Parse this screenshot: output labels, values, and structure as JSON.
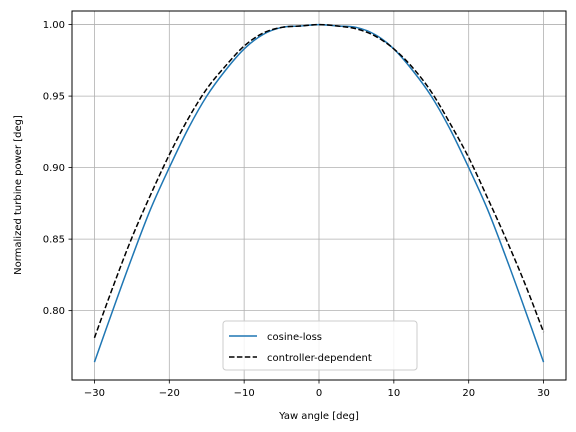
{
  "chart_data": {
    "type": "line",
    "title": "",
    "xlabel": "Yaw angle [deg]",
    "ylabel": "Normalized turbine power [deg]",
    "xlim": [
      -33,
      33
    ],
    "ylim": [
      0.7515,
      1.0095
    ],
    "xticks": [
      -30,
      -20,
      -10,
      0,
      10,
      20,
      30
    ],
    "xtick_labels": [
      "−30",
      "−20",
      "−10",
      "0",
      "10",
      "20",
      "30"
    ],
    "yticks": [
      0.8,
      0.85,
      0.9,
      0.95,
      1.0
    ],
    "ytick_labels": [
      "0.80",
      "0.85",
      "0.90",
      "0.95",
      "1.00"
    ],
    "grid": true,
    "legend_position": "bottom-center",
    "series": [
      {
        "name": "cosine-loss",
        "color": "#1f77b4",
        "dash": "solid",
        "x": [
          -30,
          -27.5,
          -25,
          -22.5,
          -20,
          -17.5,
          -15,
          -12.5,
          -10,
          -7.5,
          -5,
          -2.5,
          0,
          2.5,
          5,
          7.5,
          10,
          12.5,
          15,
          17.5,
          20,
          22.5,
          25,
          27.5,
          30
        ],
        "y": [
          0.764,
          0.801,
          0.837,
          0.871,
          0.9,
          0.927,
          0.95,
          0.968,
          0.983,
          0.993,
          0.998,
          0.999,
          1.0,
          0.999,
          0.998,
          0.993,
          0.983,
          0.968,
          0.95,
          0.927,
          0.9,
          0.871,
          0.837,
          0.801,
          0.764
        ]
      },
      {
        "name": "controller-dependent",
        "color": "#000000",
        "dash": "dashed",
        "x": [
          -30,
          -27.5,
          -25,
          -22.5,
          -20,
          -17.5,
          -15,
          -12.5,
          -10,
          -7.5,
          -5,
          -2.5,
          0,
          2.5,
          5,
          7.5,
          10,
          12.5,
          15,
          17.5,
          20,
          22.5,
          25,
          27.5,
          30
        ],
        "y": [
          0.781,
          0.817,
          0.851,
          0.881,
          0.909,
          0.934,
          0.955,
          0.971,
          0.985,
          0.994,
          0.998,
          0.999,
          1.0,
          0.999,
          0.997,
          0.992,
          0.983,
          0.97,
          0.953,
          0.931,
          0.907,
          0.879,
          0.85,
          0.819,
          0.785
        ]
      }
    ]
  }
}
